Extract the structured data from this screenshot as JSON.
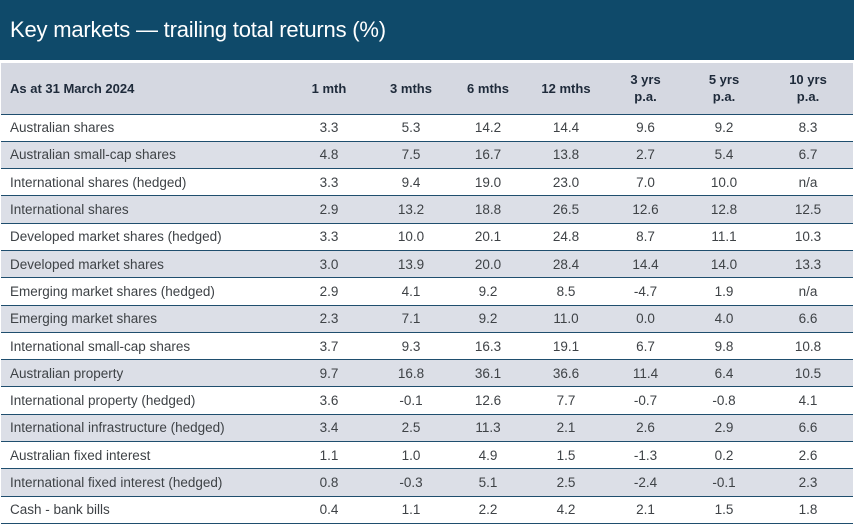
{
  "title": "Key markets — trailing total returns (%)",
  "header": {
    "as_at": "As at 31 March 2024",
    "cols": [
      {
        "line1": "1 mth",
        "line2": ""
      },
      {
        "line1": "3 mths",
        "line2": ""
      },
      {
        "line1": "6 mths",
        "line2": ""
      },
      {
        "line1": "12 mths",
        "line2": ""
      },
      {
        "line1": "3 yrs",
        "line2": "p.a."
      },
      {
        "line1": "5 yrs",
        "line2": "p.a."
      },
      {
        "line1": "10 yrs",
        "line2": "p.a."
      }
    ]
  },
  "rows": [
    {
      "name": "Australian shares",
      "values": [
        "3.3",
        "5.3",
        "14.2",
        "14.4",
        "9.6",
        "9.2",
        "8.3"
      ]
    },
    {
      "name": "Australian small-cap shares",
      "values": [
        "4.8",
        "7.5",
        "16.7",
        "13.8",
        "2.7",
        "5.4",
        "6.7"
      ]
    },
    {
      "name": "International shares (hedged)",
      "values": [
        "3.3",
        "9.4",
        "19.0",
        "23.0",
        "7.0",
        "10.0",
        "n/a"
      ]
    },
    {
      "name": "International shares",
      "values": [
        "2.9",
        "13.2",
        "18.8",
        "26.5",
        "12.6",
        "12.8",
        "12.5"
      ]
    },
    {
      "name": "Developed market shares (hedged)",
      "values": [
        "3.3",
        "10.0",
        "20.1",
        "24.8",
        "8.7",
        "11.1",
        "10.3"
      ]
    },
    {
      "name": "Developed market shares",
      "values": [
        "3.0",
        "13.9",
        "20.0",
        "28.4",
        "14.4",
        "14.0",
        "13.3"
      ]
    },
    {
      "name": "Emerging market shares (hedged)",
      "values": [
        "2.9",
        "4.1",
        "9.2",
        "8.5",
        "-4.7",
        "1.9",
        "n/a"
      ]
    },
    {
      "name": "Emerging market shares",
      "values": [
        "2.3",
        "7.1",
        "9.2",
        "11.0",
        "0.0",
        "4.0",
        "6.6"
      ]
    },
    {
      "name": "International small-cap shares",
      "values": [
        "3.7",
        "9.3",
        "16.3",
        "19.1",
        "6.7",
        "9.8",
        "10.8"
      ]
    },
    {
      "name": "Australian property",
      "values": [
        "9.7",
        "16.8",
        "36.1",
        "36.6",
        "11.4",
        "6.4",
        "10.5"
      ]
    },
    {
      "name": "International property (hedged)",
      "values": [
        "3.6",
        "-0.1",
        "12.6",
        "7.7",
        "-0.7",
        "-0.8",
        "4.1"
      ]
    },
    {
      "name": "International infrastructure (hedged)",
      "values": [
        "3.4",
        "2.5",
        "11.3",
        "2.1",
        "2.6",
        "2.9",
        "6.6"
      ]
    },
    {
      "name": "Australian fixed interest",
      "values": [
        "1.1",
        "1.0",
        "4.9",
        "1.5",
        "-1.3",
        "0.2",
        "2.6"
      ]
    },
    {
      "name": "International fixed interest (hedged)",
      "values": [
        "0.8",
        "-0.3",
        "5.1",
        "2.5",
        "-2.4",
        "-0.1",
        "2.3"
      ]
    },
    {
      "name": "Cash - bank bills",
      "values": [
        "0.4",
        "1.1",
        "2.2",
        "4.2",
        "2.1",
        "1.5",
        "1.8"
      ]
    }
  ],
  "colors": {
    "title_bar": "#0f4a6a",
    "header_bg": "#d5d8e1",
    "stripe_bg": "#dcdfe7",
    "rule": "#1f4e6e"
  }
}
